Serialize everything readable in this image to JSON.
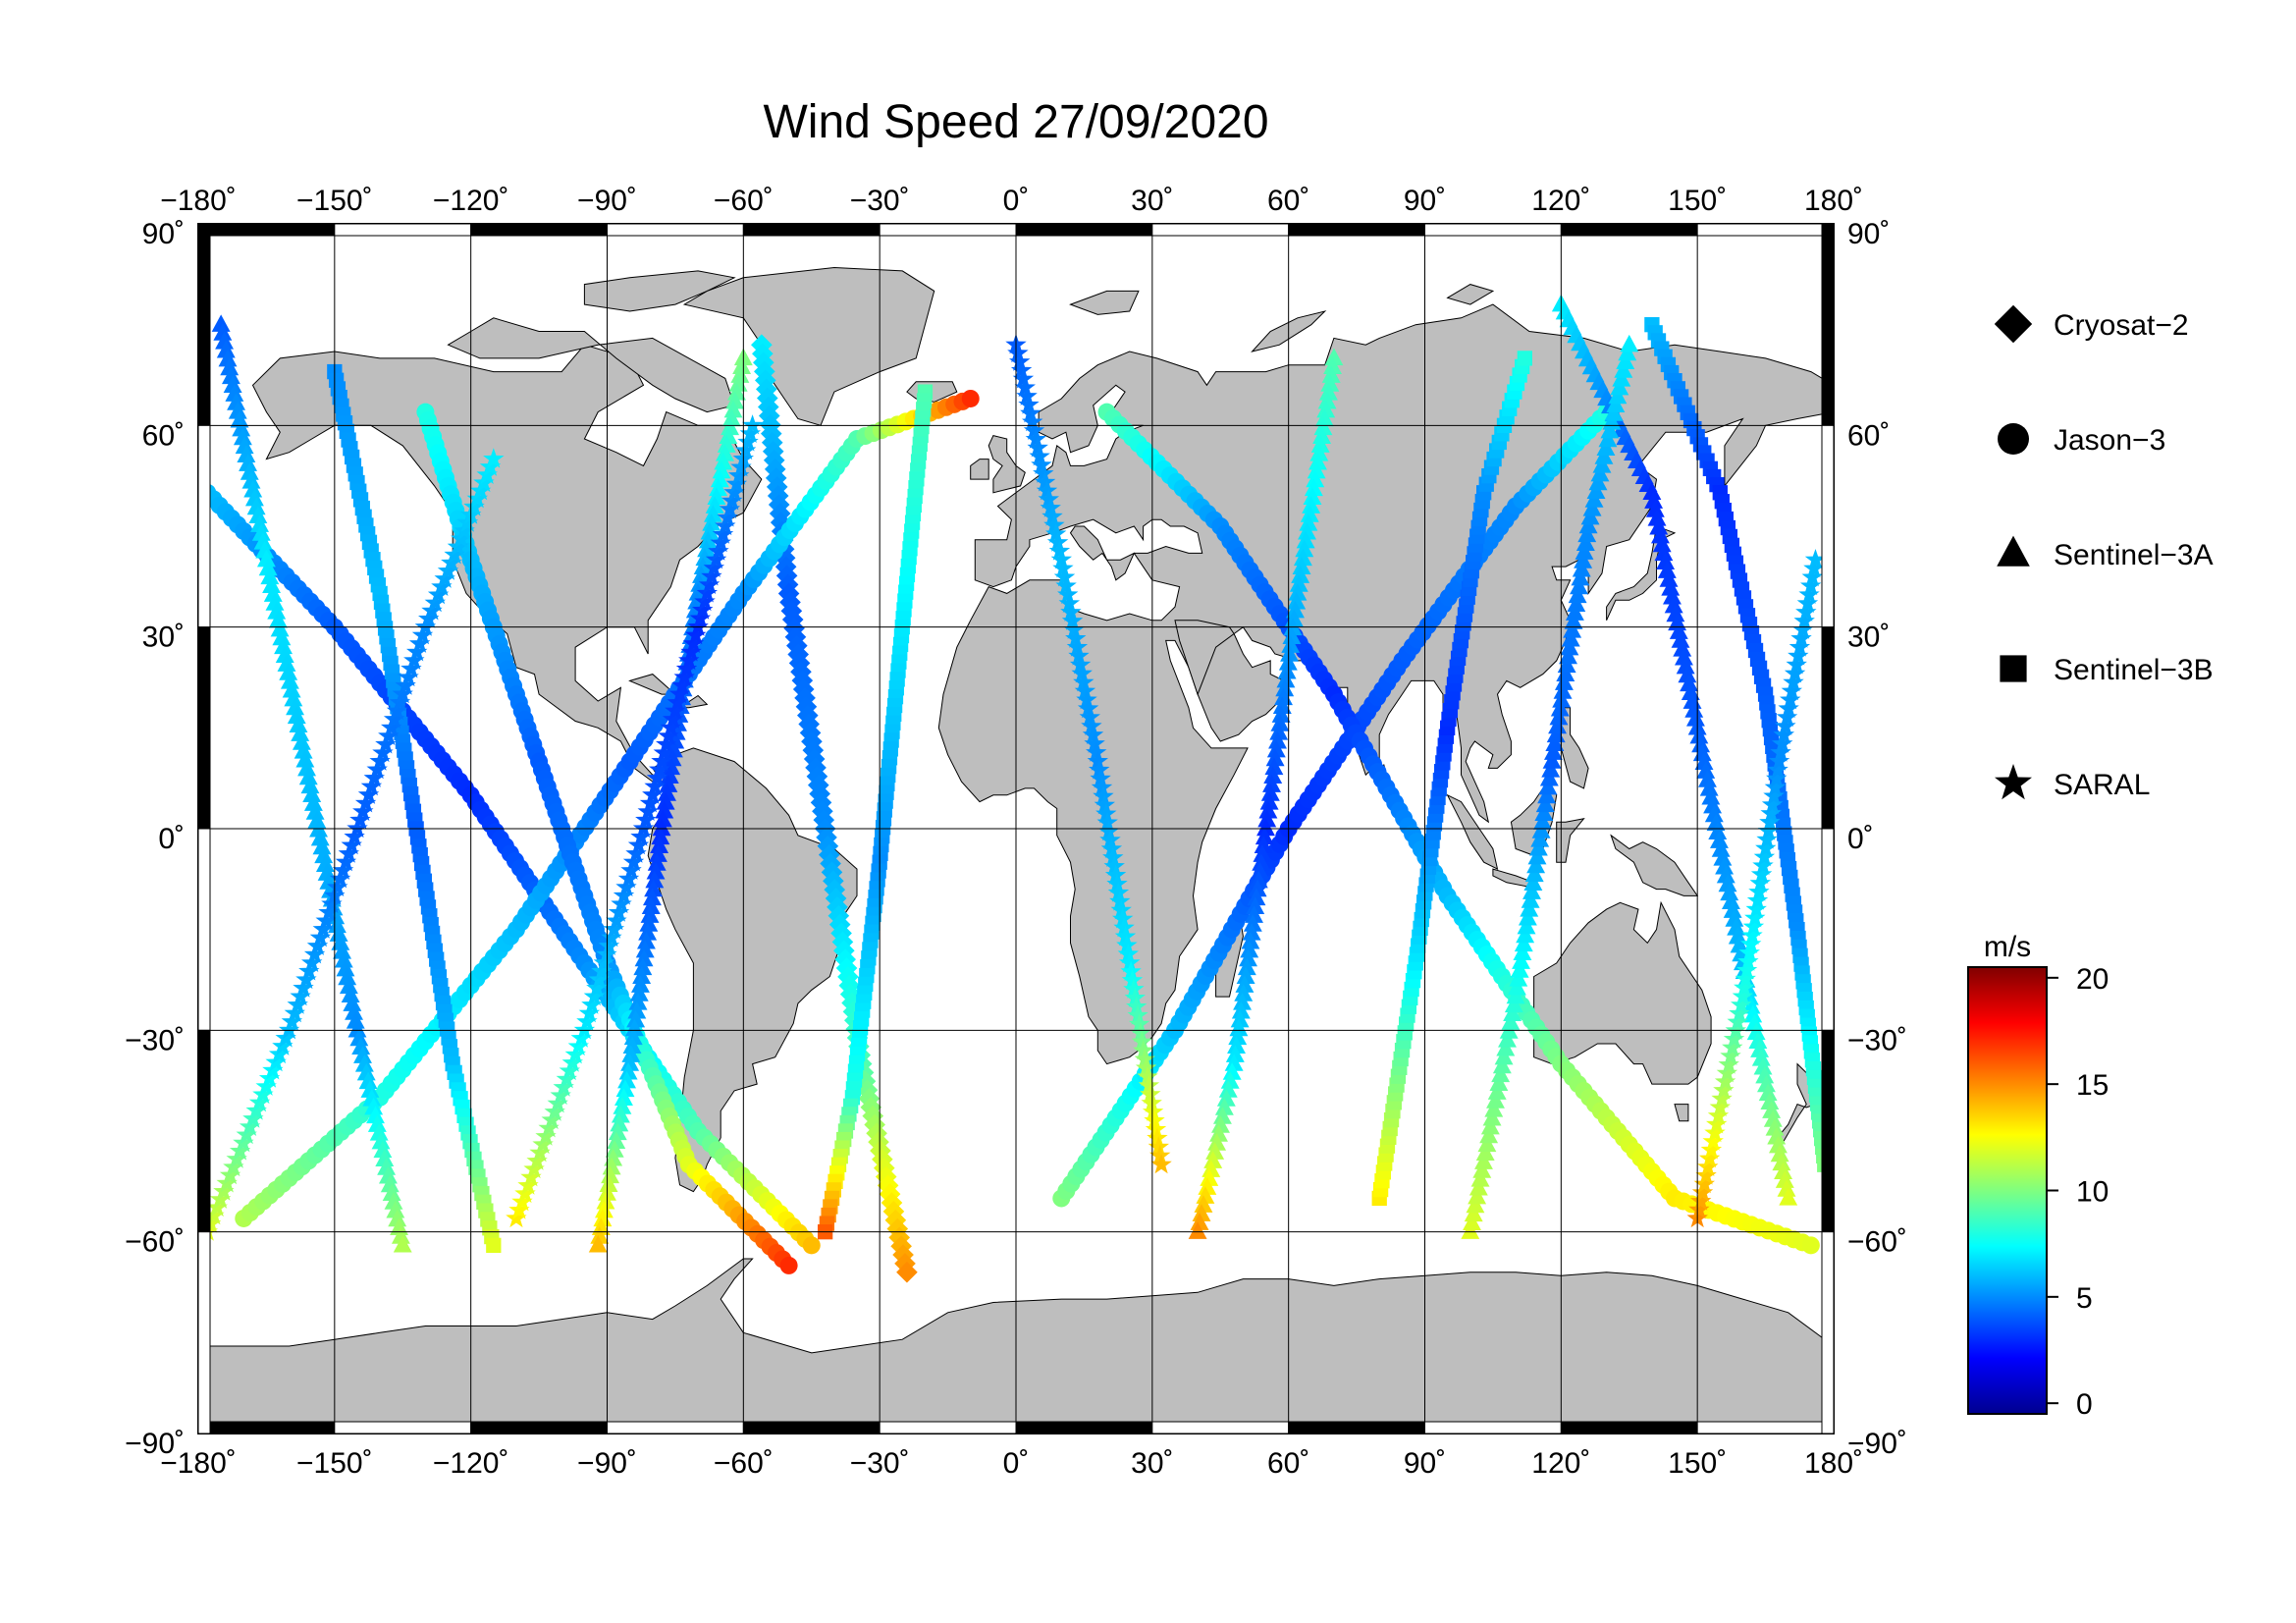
{
  "title": "Wind Speed 27/09/2020",
  "map": {
    "lon_ticks": [
      -180,
      -150,
      -120,
      -90,
      -60,
      -30,
      0,
      30,
      60,
      90,
      120,
      150,
      180
    ],
    "lat_ticks": [
      90,
      60,
      30,
      0,
      -30,
      -60,
      -90
    ],
    "lon_tick_labels": [
      "−180˚",
      "−150˚",
      "−120˚",
      "−90˚",
      "−60˚",
      "−30˚",
      "0˚",
      "30˚",
      "60˚",
      "90˚",
      "120˚",
      "150˚",
      "180˚"
    ],
    "lat_tick_labels": [
      "90˚",
      "60˚",
      "30˚",
      "0˚",
      "−30˚",
      "−60˚",
      "−90˚"
    ],
    "projection": "equirectangular",
    "land_color": "#bebebe",
    "ocean_color": "#ffffff"
  },
  "legend": {
    "items": [
      {
        "label": "Cryosat−2",
        "marker": "diamond"
      },
      {
        "label": "Jason−3",
        "marker": "circle"
      },
      {
        "label": "Sentinel−3A",
        "marker": "triangle"
      },
      {
        "label": "Sentinel−3B",
        "marker": "square"
      },
      {
        "label": "SARAL",
        "marker": "star"
      }
    ]
  },
  "colorbar": {
    "unit": "m/s",
    "ticks": [
      0,
      5,
      10,
      15,
      20
    ],
    "tick_labels": [
      "0",
      "5",
      "10",
      "15",
      "20"
    ],
    "range": [
      -0.5,
      20.5
    ],
    "colormap": "jet"
  },
  "chart_data": {
    "type": "scatter",
    "title": "Wind Speed 27/09/2020",
    "xlabel": "",
    "ylabel": "",
    "xlim": [
      -180,
      180
    ],
    "ylim": [
      -90,
      90
    ],
    "value_unit": "m/s",
    "value_range": [
      0,
      20
    ],
    "series": [
      {
        "name": "Cryosat−2",
        "marker": "diamond",
        "tracks": [
          [
            [
              -56,
              72
            ],
            [
              -50,
              35
            ],
            [
              -42,
              0
            ],
            [
              -34,
              -35
            ],
            [
              -24,
              -66
            ]
          ]
        ],
        "speeds": [
          [
            7,
            4,
            5,
            9,
            15
          ]
        ]
      },
      {
        "name": "Jason−3",
        "marker": "circle",
        "tracks": [
          [
            [
              -178,
              50
            ],
            [
              -150,
              30
            ],
            [
              -120,
              5
            ],
            [
              -95,
              -20
            ],
            [
              -70,
              -45
            ],
            [
              -45,
              -62
            ]
          ],
          [
            [
              -170,
              -58
            ],
            [
              -140,
              -40
            ],
            [
              -110,
              -15
            ],
            [
              -85,
              10
            ],
            [
              -60,
              35
            ],
            [
              -35,
              58
            ],
            [
              -10,
              64
            ]
          ],
          [
            [
              10,
              -55
            ],
            [
              35,
              -30
            ],
            [
              60,
              0
            ],
            [
              85,
              25
            ],
            [
              110,
              48
            ],
            [
              130,
              62
            ]
          ],
          [
            [
              20,
              62
            ],
            [
              45,
              45
            ],
            [
              70,
              20
            ],
            [
              95,
              -10
            ],
            [
              120,
              -35
            ],
            [
              145,
              -55
            ],
            [
              175,
              -62
            ]
          ],
          [
            [
              -130,
              62
            ],
            [
              -120,
              40
            ],
            [
              -105,
              10
            ],
            [
              -90,
              -20
            ],
            [
              -72,
              -50
            ],
            [
              -50,
              -65
            ]
          ]
        ],
        "speeds": [
          [
            6,
            4,
            3,
            5,
            9,
            14
          ],
          [
            11,
            8,
            6,
            4,
            5,
            9,
            17
          ],
          [
            10,
            6,
            3,
            4,
            5,
            8
          ],
          [
            9,
            5,
            3,
            6,
            10,
            13,
            12
          ],
          [
            8,
            6,
            4,
            5,
            12,
            17
          ]
        ]
      },
      {
        "name": "Sentinel−3A",
        "marker": "triangle",
        "tracks": [
          [
            [
              -175,
              75
            ],
            [
              -165,
              40
            ],
            [
              -155,
              5
            ],
            [
              -145,
              -30
            ],
            [
              -135,
              -62
            ]
          ],
          [
            [
              -60,
              70
            ],
            [
              -70,
              35
            ],
            [
              -78,
              0
            ],
            [
              -85,
              -35
            ],
            [
              -92,
              -62
            ]
          ],
          [
            [
              70,
              70
            ],
            [
              62,
              35
            ],
            [
              55,
              0
            ],
            [
              48,
              -35
            ],
            [
              40,
              -60
            ]
          ],
          [
            [
              120,
              78
            ],
            [
              140,
              50
            ],
            [
              150,
              15
            ],
            [
              160,
              -20
            ],
            [
              170,
              -55
            ]
          ],
          [
            [
              100,
              -60
            ],
            [
              110,
              -25
            ],
            [
              118,
              10
            ],
            [
              126,
              45
            ],
            [
              135,
              72
            ]
          ]
        ],
        "speeds": [
          [
            4,
            7,
            6,
            5,
            11
          ],
          [
            10,
            5,
            3,
            6,
            14
          ],
          [
            9,
            6,
            3,
            7,
            15
          ],
          [
            7,
            3,
            4,
            6,
            12
          ],
          [
            12,
            8,
            4,
            5,
            7
          ]
        ]
      },
      {
        "name": "Sentinel−3B",
        "marker": "square",
        "tracks": [
          [
            [
              -150,
              68
            ],
            [
              -140,
              35
            ],
            [
              -132,
              0
            ],
            [
              -124,
              -35
            ],
            [
              -115,
              -62
            ]
          ],
          [
            [
              -20,
              65
            ],
            [
              -25,
              30
            ],
            [
              -30,
              -5
            ],
            [
              -36,
              -40
            ],
            [
              -42,
              -60
            ]
          ],
          [
            [
              140,
              75
            ],
            [
              155,
              50
            ],
            [
              165,
              20
            ],
            [
              172,
              -15
            ],
            [
              178,
              -50
            ]
          ],
          [
            [
              80,
              -55
            ],
            [
              88,
              -20
            ],
            [
              95,
              15
            ],
            [
              103,
              50
            ],
            [
              112,
              70
            ]
          ]
        ],
        "speeds": [
          [
            5,
            6,
            4,
            6,
            12
          ],
          [
            9,
            7,
            5,
            8,
            16
          ],
          [
            6,
            3,
            4,
            5,
            10
          ],
          [
            13,
            7,
            3,
            5,
            8
          ]
        ]
      },
      {
        "name": "SARAL",
        "marker": "star",
        "tracks": [
          [
            [
              -178,
              -60
            ],
            [
              -160,
              -30
            ],
            [
              -145,
              0
            ],
            [
              -130,
              30
            ],
            [
              -115,
              55
            ]
          ],
          [
            [
              0,
              72
            ],
            [
              10,
              40
            ],
            [
              18,
              10
            ],
            [
              25,
              -20
            ],
            [
              32,
              -50
            ]
          ],
          [
            [
              150,
              -58
            ],
            [
              160,
              -25
            ],
            [
              168,
              10
            ],
            [
              176,
              40
            ]
          ],
          [
            [
              -110,
              -58
            ],
            [
              -95,
              -30
            ],
            [
              -82,
              0
            ],
            [
              -70,
              30
            ],
            [
              -58,
              60
            ]
          ]
        ],
        "speeds": [
          [
            12,
            6,
            4,
            5,
            7
          ],
          [
            4,
            6,
            5,
            7,
            14
          ],
          [
            15,
            8,
            5,
            6
          ],
          [
            13,
            7,
            4,
            3,
            6
          ]
        ]
      }
    ]
  }
}
